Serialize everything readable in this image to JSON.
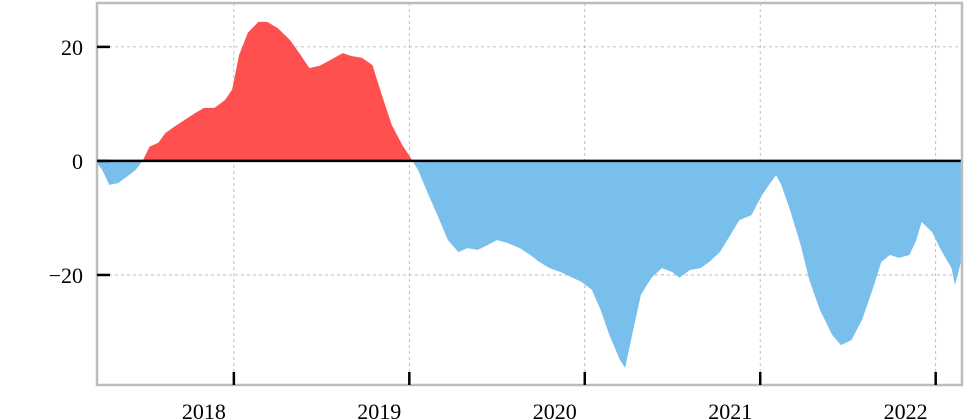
{
  "chart_data": {
    "type": "area",
    "x": [
      2017.22,
      2017.25,
      2017.29,
      2017.34,
      2017.38,
      2017.44,
      2017.48,
      2017.52,
      2017.57,
      2017.61,
      2017.66,
      2017.72,
      2017.78,
      2017.83,
      2017.89,
      2017.95,
      2017.99,
      2018.03,
      2018.08,
      2018.14,
      2018.19,
      2018.25,
      2018.32,
      2018.38,
      2018.43,
      2018.49,
      2018.55,
      2018.62,
      2018.67,
      2018.73,
      2018.79,
      2018.84,
      2018.9,
      2018.96,
      2019.0,
      2019.05,
      2019.11,
      2019.16,
      2019.22,
      2019.28,
      2019.33,
      2019.39,
      2019.45,
      2019.5,
      2019.56,
      2019.63,
      2019.69,
      2019.74,
      2019.8,
      2019.87,
      2019.93,
      2019.98,
      2020.04,
      2020.09,
      2020.14,
      2020.2,
      2020.23,
      2020.27,
      2020.32,
      2020.38,
      2020.44,
      2020.5,
      2020.54,
      2020.6,
      2020.66,
      2020.71,
      2020.77,
      2020.83,
      2020.88,
      2020.95,
      2021.01,
      2021.05,
      2021.09,
      2021.12,
      2021.17,
      2021.23,
      2021.28,
      2021.34,
      2021.41,
      2021.46,
      2021.52,
      2021.58,
      2021.64,
      2021.69,
      2021.74,
      2021.79,
      2021.85,
      2021.89,
      2021.92,
      2021.98,
      2022.03,
      2022.09,
      2022.11,
      2022.15
    ],
    "values": [
      -0.4,
      -1.6,
      -4.2,
      -3.9,
      -3.0,
      -1.6,
      0,
      2.5,
      3.2,
      4.9,
      6.0,
      7.2,
      8.4,
      9.3,
      9.3,
      10.7,
      12.5,
      18.6,
      22.5,
      24.4,
      24.4,
      23.3,
      21.2,
      18.6,
      16.3,
      16.7,
      17.7,
      18.9,
      18.4,
      18.1,
      16.8,
      11.9,
      6.3,
      2.8,
      0.9,
      -1.6,
      -6.0,
      -9.5,
      -13.9,
      -16.0,
      -15.3,
      -15.6,
      -14.7,
      -13.9,
      -14.4,
      -15.3,
      -16.5,
      -17.7,
      -18.8,
      -19.6,
      -20.5,
      -21.2,
      -22.6,
      -26.1,
      -30.5,
      -34.9,
      -36.3,
      -30.5,
      -23.5,
      -20.5,
      -18.8,
      -19.5,
      -20.5,
      -19.1,
      -18.8,
      -17.7,
      -16.0,
      -13.0,
      -10.4,
      -9.5,
      -6.0,
      -4.2,
      -2.5,
      -4.2,
      -8.6,
      -14.7,
      -20.9,
      -26.1,
      -30.5,
      -32.3,
      -31.4,
      -27.9,
      -22.6,
      -17.7,
      -16.5,
      -17.0,
      -16.5,
      -13.9,
      -10.7,
      -12.5,
      -15.6,
      -18.8,
      -21.8,
      -17.0
    ],
    "positive_color": "#ff5050",
    "negative_color": "#78c0eb",
    "xlim": [
      2017.22,
      2022.15
    ],
    "ylim": [
      -39.3,
      27.7
    ],
    "xticks": [
      2018,
      2019,
      2020,
      2021,
      2022
    ],
    "yticks": [
      {
        "value": -20,
        "label": "−20"
      },
      0,
      20
    ],
    "grid": true
  }
}
